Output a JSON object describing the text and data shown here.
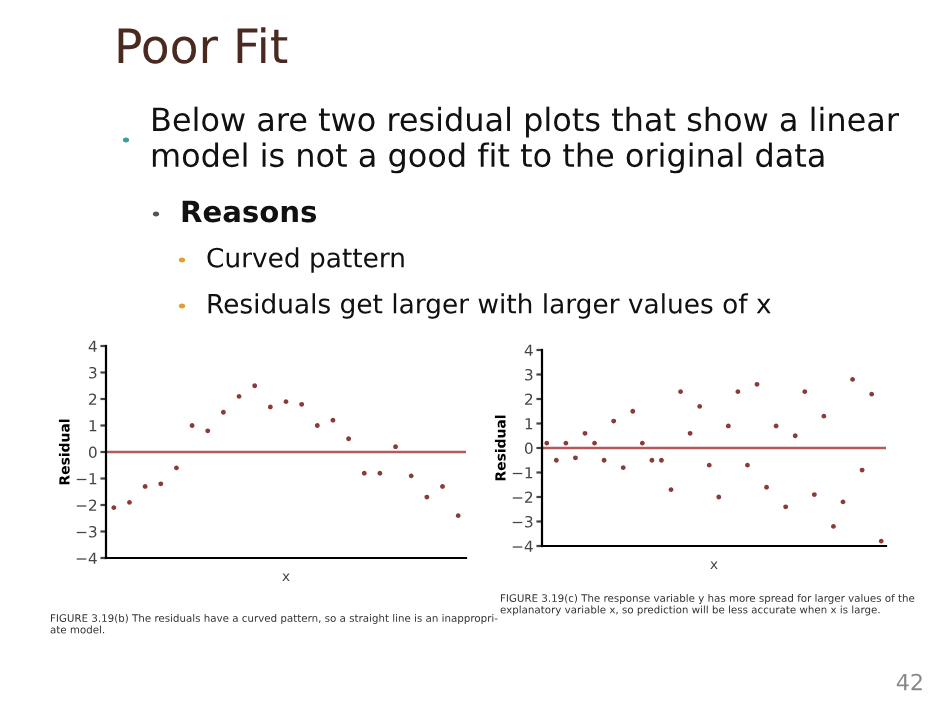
{
  "chart_data": [
    {
      "type": "other",
      "title": "Poor Fit",
      "annotations": [
        "Below are two residual plots that show a linear model is not a good fit to the original data",
        "Reasons",
        "Curved pattern",
        "Residuals get larger with larger values of x",
        "42"
      ]
    },
    {
      "type": "scatter",
      "xlabel": "x",
      "ylabel": "Residual",
      "ylim": [
        -4,
        4
      ],
      "yticks": [
        -4,
        -3,
        -2,
        -1,
        0,
        1,
        2,
        3,
        4
      ],
      "marker": "circle",
      "grid": false,
      "legend": false,
      "categories": [
        null,
        null,
        null,
        null,
        null,
        null,
        null,
        null,
        null,
        null,
        null,
        null,
        null,
        null,
        null,
        null,
        null,
        null,
        null,
        null,
        null,
        null,
        null
      ],
      "series": [
        {
          "color": "#8b3a3a",
          "values": [
            -2.1,
            -1.9,
            -1.3,
            -1.2,
            -0.6,
            1.0,
            0.8,
            1.5,
            2.1,
            2.5,
            1.7,
            1.9,
            1.8,
            1.0,
            1.2,
            0.5,
            -0.8,
            -0.8,
            0.2,
            -0.9,
            -1.7,
            -1.3,
            -2.4
          ]
        }
      ],
      "ref_lines": [
        {
          "axis": "y",
          "value": 0,
          "color": "#b05a5a",
          "line_style": "solid"
        }
      ],
      "annotations": [
        "FIGURE 3.19(b) The residuals have a curved pattern, so a straight line is an inappropri-\nate model."
      ]
    },
    {
      "type": "scatter",
      "xlabel": "x",
      "ylabel": "Residual",
      "ylim": [
        -4,
        4
      ],
      "yticks": [
        -4,
        -3,
        -2,
        -1,
        0,
        1,
        2,
        3,
        4
      ],
      "marker": "circle",
      "grid": false,
      "legend": false,
      "categories": [
        null,
        null,
        null,
        null,
        null,
        null,
        null,
        null,
        null,
        null,
        null,
        null,
        null,
        null,
        null,
        null,
        null,
        null,
        null,
        null,
        null,
        null,
        null,
        null,
        null,
        null,
        null,
        null,
        null,
        null,
        null,
        null,
        null,
        null,
        null,
        null
      ],
      "series": [
        {
          "color": "#8b3a3a",
          "values": [
            0.2,
            -0.5,
            0.2,
            -0.4,
            0.6,
            0.2,
            -0.5,
            1.1,
            -0.8,
            1.5,
            0.2,
            -0.5,
            -0.5,
            -1.7,
            2.3,
            0.6,
            1.7,
            -0.7,
            -2.0,
            0.9,
            2.3,
            -0.7,
            2.6,
            -1.6,
            0.9,
            -2.4,
            0.5,
            2.3,
            -1.9,
            1.3,
            -3.2,
            -2.2,
            2.8,
            -0.9,
            2.2,
            -3.8
          ]
        }
      ],
      "ref_lines": [
        {
          "axis": "y",
          "value": 0,
          "color": "#b05a5a",
          "line_style": "solid"
        }
      ],
      "annotations": [
        "FIGURE 3.19(c) The response variable y has more spread for larger values of the\nexplanatory variable x, so prediction will be less accurate when x is large."
      ]
    }
  ]
}
